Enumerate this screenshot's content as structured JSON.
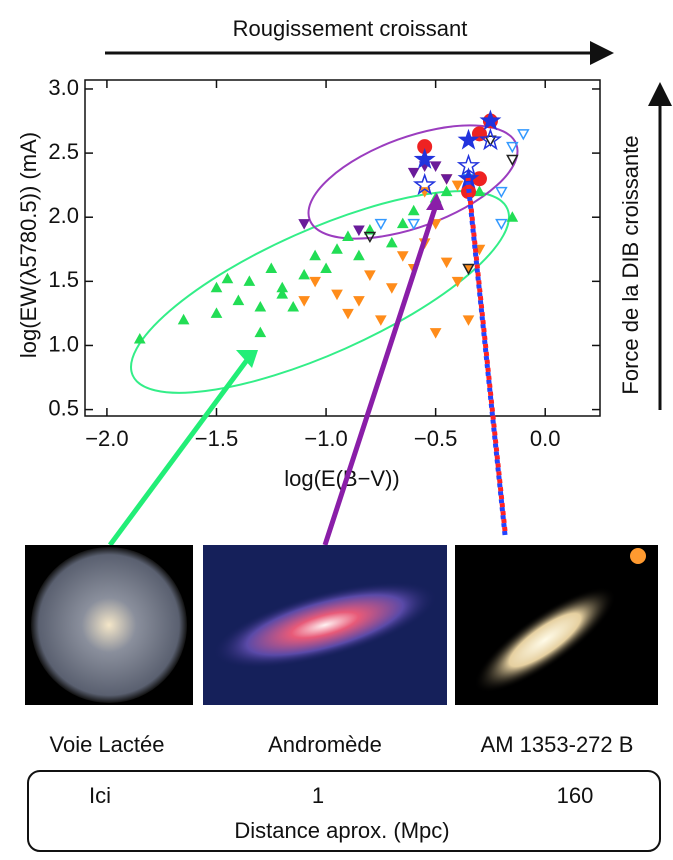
{
  "chart_data": {
    "type": "scatter",
    "xlabel": "log(E(B−V))",
    "ylabel": "log(EW(λ5780.5)) (mA)",
    "xlim": [
      -2.1,
      0.25
    ],
    "ylim": [
      0.45,
      3.07
    ],
    "xticks": [
      {
        "value": -2,
        "label": "−2.0"
      },
      {
        "value": -1.5,
        "label": "−1.5"
      },
      {
        "value": -1,
        "label": "−1.0"
      },
      {
        "value": -0.5,
        "label": "−0.5"
      },
      {
        "value": 0,
        "label": "0.0"
      }
    ],
    "yticks": [
      0.5,
      {
        "value": 1,
        "label": "1.0"
      },
      1.5,
      {
        "value": 2,
        "label": "2.0"
      },
      2.5,
      {
        "value": 3,
        "label": "3.0"
      }
    ],
    "series": [
      {
        "marker": "triangle-up",
        "filled": true,
        "color": "#22dd55",
        "x": [
          -1.85,
          -1.65,
          -1.5,
          -1.45,
          -1.4,
          -1.35,
          -1.3,
          -1.25,
          -1.2,
          -1.15,
          -1.1,
          -1.05,
          -1.0,
          -0.95,
          -0.9,
          -0.85,
          -0.8,
          -0.7,
          -0.65,
          -0.6,
          -0.5,
          -0.45,
          -0.3,
          -0.15,
          -1.3,
          -1.5,
          -1.2
        ],
        "values": [
          1.05,
          1.2,
          1.25,
          1.52,
          1.35,
          1.5,
          1.3,
          1.6,
          1.4,
          1.3,
          1.55,
          1.7,
          1.6,
          1.75,
          1.85,
          1.7,
          1.9,
          1.8,
          1.95,
          2.05,
          2.15,
          2.2,
          2.2,
          2.0,
          1.1,
          1.45,
          1.45
        ]
      },
      {
        "marker": "triangle-down",
        "filled": true,
        "color": "#ff8c1a",
        "x": [
          -1.05,
          -0.95,
          -0.9,
          -0.85,
          -0.8,
          -0.75,
          -0.7,
          -0.65,
          -0.6,
          -0.55,
          -0.5,
          -0.45,
          -0.4,
          -0.55,
          -0.45,
          -0.35,
          -0.3,
          -0.5,
          -0.35,
          -1.1,
          -0.4
        ],
        "values": [
          1.5,
          1.4,
          1.25,
          1.35,
          1.55,
          1.2,
          1.45,
          1.7,
          1.6,
          1.8,
          1.95,
          1.65,
          1.5,
          2.2,
          2.3,
          1.6,
          1.75,
          1.1,
          1.2,
          1.35,
          2.25
        ]
      },
      {
        "marker": "triangle-down",
        "filled": true,
        "color": "#6a1b9a",
        "x": [
          -1.1,
          -0.6,
          -0.55,
          -0.5,
          -0.45,
          -0.85
        ],
        "values": [
          1.95,
          2.35,
          2.4,
          2.4,
          2.3,
          1.9
        ]
      },
      {
        "marker": "triangle-down",
        "filled": false,
        "color": "#3399ff",
        "x": [
          -0.1,
          -0.15,
          -0.75,
          -0.6,
          -0.2,
          -0.35,
          -0.2
        ],
        "values": [
          2.65,
          2.55,
          1.95,
          1.95,
          1.95,
          2.3,
          2.2
        ]
      },
      {
        "marker": "triangle-down",
        "filled": false,
        "color": "#222222",
        "x": [
          -0.15,
          -0.25,
          -0.8,
          -0.35
        ],
        "values": [
          2.45,
          2.6,
          1.85,
          1.6
        ]
      },
      {
        "marker": "circle",
        "filled": true,
        "color": "#ee2222",
        "x": [
          -0.55,
          -0.3,
          -0.25,
          -0.35,
          -0.3
        ],
        "values": [
          2.55,
          2.65,
          2.75,
          2.2,
          2.3
        ]
      },
      {
        "marker": "star",
        "filled": true,
        "color": "#2233dd",
        "x": [
          -0.55,
          -0.35,
          -0.25,
          -0.35
        ],
        "values": [
          2.45,
          2.6,
          2.75,
          2.3
        ]
      },
      {
        "marker": "star",
        "filled": false,
        "color": "#2233dd",
        "x": [
          -0.55,
          -0.35,
          -0.25
        ],
        "values": [
          2.25,
          2.4,
          2.6
        ]
      }
    ]
  },
  "top_arrow_label": "Rougissement croissant",
  "right_arrow_label": "Force de la DIB croissante",
  "galaxies": [
    {
      "name": "Voie Lactée",
      "distance": "Ici"
    },
    {
      "name": "Andromède",
      "distance": 1
    },
    {
      "name": "AM 1353-272 B",
      "distance": 160
    }
  ],
  "distance_label": "Distance aprox. (Mpc)"
}
